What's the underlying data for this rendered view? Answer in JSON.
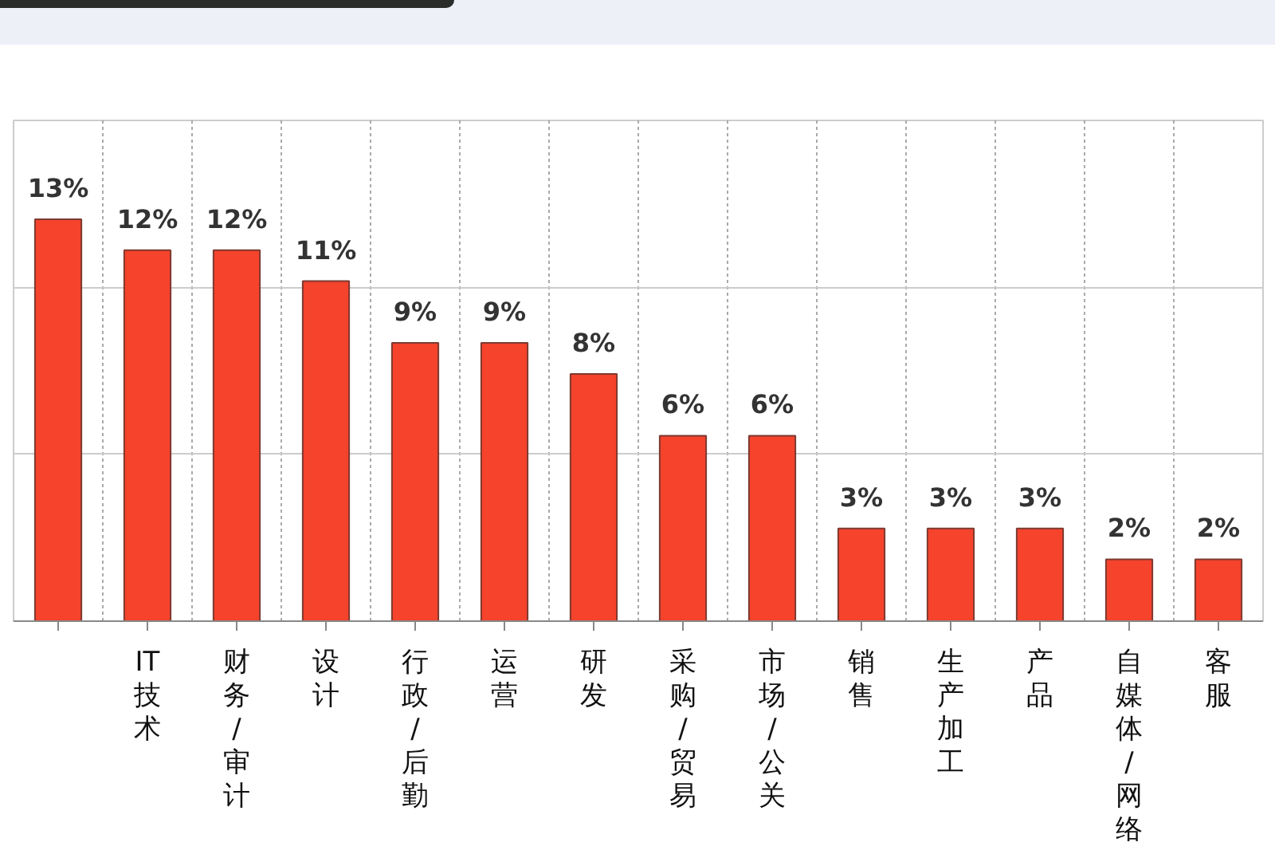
{
  "chart_data": {
    "type": "bar",
    "categories": [
      null,
      "IT技术",
      "财务/审计",
      "设计",
      "行政/后勤",
      "运营",
      "研发",
      "采购/贸易",
      "市场/公关",
      "销售",
      "生产加工",
      "产品",
      "自媒体/网络",
      "客服"
    ],
    "values": [
      13,
      12,
      12,
      11,
      9,
      9,
      8,
      6,
      6,
      3,
      3,
      3,
      2,
      2
    ],
    "value_labels": [
      "13%",
      "12%",
      "12%",
      "11%",
      "9%",
      "9%",
      "8%",
      "6%",
      "6%",
      "3%",
      "3%",
      "3%",
      "2%",
      "2%"
    ],
    "color": "#f5432c",
    "ylim": [
      0,
      16.2
    ],
    "yticks": [
      {
        "value": 5.4,
        "label": null
      },
      {
        "value": 10.8,
        "label": null
      }
    ],
    "grid": true,
    "tick_labels": "x"
  }
}
